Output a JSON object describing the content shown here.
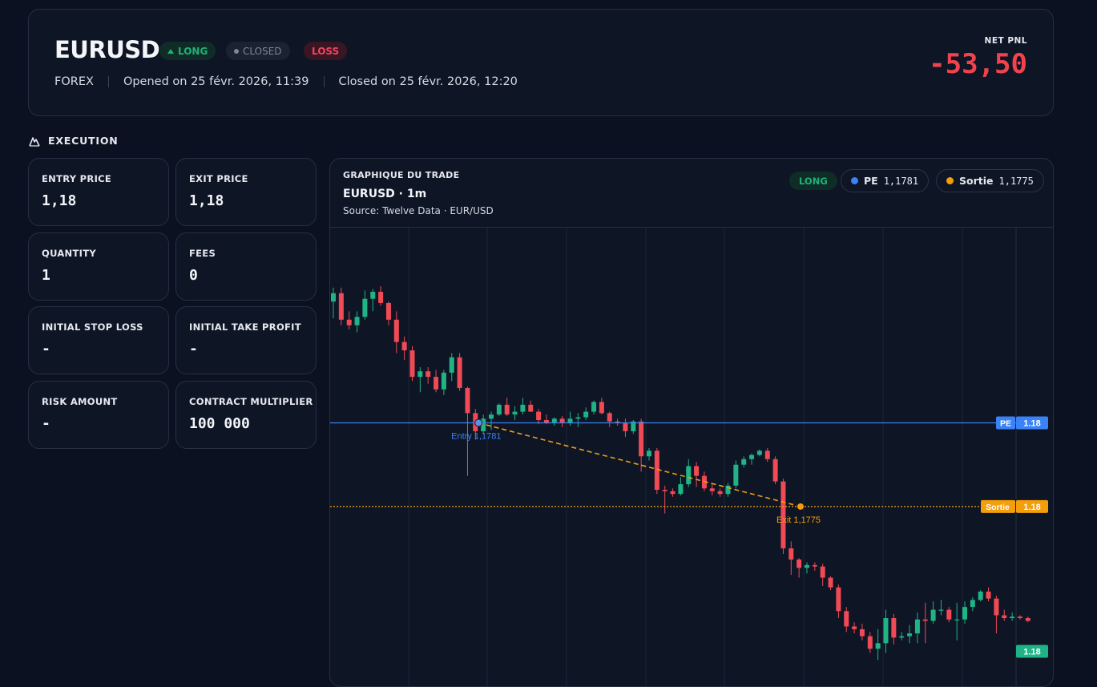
{
  "header": {
    "symbol": "EURUSD",
    "direction_badge": "LONG",
    "status_badge": "CLOSED",
    "result_badge": "LOSS",
    "market": "FOREX",
    "opened": "Opened on 25 févr. 2026, 11:39",
    "closed": "Closed on 25 févr. 2026, 12:20",
    "net_pnl_label": "NET PNL",
    "net_pnl_value": "-53,50"
  },
  "execution": {
    "title": "EXECUTION",
    "stats": [
      {
        "label": "ENTRY PRICE",
        "value": "1,18"
      },
      {
        "label": "EXIT PRICE",
        "value": "1,18"
      },
      {
        "label": "QUANTITY",
        "value": "1"
      },
      {
        "label": "FEES",
        "value": "0"
      },
      {
        "label": "INITIAL STOP LOSS",
        "value": "-"
      },
      {
        "label": "INITIAL TAKE PROFIT",
        "value": "-"
      },
      {
        "label": "RISK AMOUNT",
        "value": "-"
      },
      {
        "label": "CONTRACT MULTIPLIER",
        "value": "100 000"
      }
    ]
  },
  "chart": {
    "kicker": "GRAPHIQUE DU TRADE",
    "title": "EURUSD · 1m",
    "source": "Source: Twelve Data · EUR/USD",
    "long_pill": "LONG",
    "pe_label": "PE",
    "pe_value": "1,1781",
    "exit_label": "Sortie",
    "exit_value": "1,1775",
    "entry_marker_text": "Entry 1,1781",
    "exit_marker_text": "Exit 1,1775",
    "pe_axis_tag": "PE",
    "pe_axis_value": "1.18",
    "exit_axis_tag": "Sortie",
    "exit_axis_value": "1.18",
    "last_axis_value": "1.18",
    "colors": {
      "up": "#1fb386",
      "down": "#ef4a55",
      "pe": "#3b82f6",
      "exit": "#f59e0b"
    }
  },
  "chart_data": {
    "type": "candlestick",
    "title": "EURUSD · 1m",
    "entry_price": 1.1781,
    "exit_price": 1.1775,
    "candles": [
      {
        "o": 1.17897,
        "h": 1.17907,
        "l": 1.17885,
        "c": 1.17903
      },
      {
        "o": 1.17903,
        "h": 1.17907,
        "l": 1.1788,
        "c": 1.17884
      },
      {
        "o": 1.17884,
        "h": 1.1789,
        "l": 1.17877,
        "c": 1.1788
      },
      {
        "o": 1.1788,
        "h": 1.1789,
        "l": 1.17875,
        "c": 1.17886
      },
      {
        "o": 1.17886,
        "h": 1.17905,
        "l": 1.17884,
        "c": 1.17899
      },
      {
        "o": 1.17899,
        "h": 1.17906,
        "l": 1.1789,
        "c": 1.17904
      },
      {
        "o": 1.17904,
        "h": 1.17908,
        "l": 1.17894,
        "c": 1.17896
      },
      {
        "o": 1.17896,
        "h": 1.17897,
        "l": 1.1788,
        "c": 1.17884
      },
      {
        "o": 1.17884,
        "h": 1.1789,
        "l": 1.1786,
        "c": 1.17868
      },
      {
        "o": 1.17868,
        "h": 1.17872,
        "l": 1.17855,
        "c": 1.17862
      },
      {
        "o": 1.17862,
        "h": 1.17865,
        "l": 1.1784,
        "c": 1.17843
      },
      {
        "o": 1.17843,
        "h": 1.1785,
        "l": 1.17832,
        "c": 1.17847
      },
      {
        "o": 1.17847,
        "h": 1.1785,
        "l": 1.17838,
        "c": 1.17843
      },
      {
        "o": 1.17843,
        "h": 1.17848,
        "l": 1.17832,
        "c": 1.17834
      },
      {
        "o": 1.17834,
        "h": 1.17848,
        "l": 1.1783,
        "c": 1.17846
      },
      {
        "o": 1.17846,
        "h": 1.1786,
        "l": 1.1784,
        "c": 1.17857
      },
      {
        "o": 1.17857,
        "h": 1.1786,
        "l": 1.17833,
        "c": 1.17835
      },
      {
        "o": 1.17835,
        "h": 1.17836,
        "l": 1.17772,
        "c": 1.17817
      },
      {
        "o": 1.17817,
        "h": 1.1782,
        "l": 1.17798,
        "c": 1.17804
      },
      {
        "o": 1.17804,
        "h": 1.17816,
        "l": 1.17802,
        "c": 1.17813
      },
      {
        "o": 1.17813,
        "h": 1.17818,
        "l": 1.17805,
        "c": 1.17816
      },
      {
        "o": 1.17816,
        "h": 1.17824,
        "l": 1.17815,
        "c": 1.17823
      },
      {
        "o": 1.17823,
        "h": 1.17828,
        "l": 1.17815,
        "c": 1.17816
      },
      {
        "o": 1.17816,
        "h": 1.17822,
        "l": 1.17812,
        "c": 1.17818
      },
      {
        "o": 1.17818,
        "h": 1.17828,
        "l": 1.17816,
        "c": 1.17823
      },
      {
        "o": 1.17823,
        "h": 1.17826,
        "l": 1.17818,
        "c": 1.17818
      },
      {
        "o": 1.17818,
        "h": 1.1782,
        "l": 1.17809,
        "c": 1.17812
      },
      {
        "o": 1.17812,
        "h": 1.17816,
        "l": 1.17809,
        "c": 1.1781
      },
      {
        "o": 1.1781,
        "h": 1.17814,
        "l": 1.17808,
        "c": 1.17813
      },
      {
        "o": 1.17813,
        "h": 1.17815,
        "l": 1.17807,
        "c": 1.1781
      },
      {
        "o": 1.1781,
        "h": 1.17818,
        "l": 1.17808,
        "c": 1.17813
      },
      {
        "o": 1.17813,
        "h": 1.17817,
        "l": 1.17807,
        "c": 1.17814
      },
      {
        "o": 1.17814,
        "h": 1.17821,
        "l": 1.17812,
        "c": 1.17818
      },
      {
        "o": 1.17818,
        "h": 1.17826,
        "l": 1.17816,
        "c": 1.17825
      },
      {
        "o": 1.17825,
        "h": 1.17828,
        "l": 1.17816,
        "c": 1.17817
      },
      {
        "o": 1.17817,
        "h": 1.17818,
        "l": 1.17807,
        "c": 1.17811
      },
      {
        "o": 1.17811,
        "h": 1.17813,
        "l": 1.17808,
        "c": 1.1781
      },
      {
        "o": 1.1781,
        "h": 1.17813,
        "l": 1.178,
        "c": 1.17804
      },
      {
        "o": 1.17804,
        "h": 1.17812,
        "l": 1.17802,
        "c": 1.17811
      },
      {
        "o": 1.17811,
        "h": 1.17813,
        "l": 1.17775,
        "c": 1.17786
      },
      {
        "o": 1.17786,
        "h": 1.17792,
        "l": 1.17783,
        "c": 1.1779
      },
      {
        "o": 1.1779,
        "h": 1.17792,
        "l": 1.17759,
        "c": 1.17762
      },
      {
        "o": 1.17762,
        "h": 1.17765,
        "l": 1.17745,
        "c": 1.17761
      },
      {
        "o": 1.17761,
        "h": 1.17763,
        "l": 1.17757,
        "c": 1.17759
      },
      {
        "o": 1.17759,
        "h": 1.17771,
        "l": 1.17758,
        "c": 1.17766
      },
      {
        "o": 1.17766,
        "h": 1.17784,
        "l": 1.17764,
        "c": 1.17779
      },
      {
        "o": 1.17779,
        "h": 1.17782,
        "l": 1.17764,
        "c": 1.17772
      },
      {
        "o": 1.17772,
        "h": 1.17775,
        "l": 1.17761,
        "c": 1.17763
      },
      {
        "o": 1.17763,
        "h": 1.17766,
        "l": 1.17758,
        "c": 1.17761
      },
      {
        "o": 1.17761,
        "h": 1.17763,
        "l": 1.17757,
        "c": 1.17759
      },
      {
        "o": 1.17759,
        "h": 1.17767,
        "l": 1.17757,
        "c": 1.17765
      },
      {
        "o": 1.17765,
        "h": 1.17783,
        "l": 1.17763,
        "c": 1.1778
      },
      {
        "o": 1.1778,
        "h": 1.17786,
        "l": 1.17778,
        "c": 1.17784
      },
      {
        "o": 1.17784,
        "h": 1.17788,
        "l": 1.1778,
        "c": 1.17787
      },
      {
        "o": 1.17787,
        "h": 1.17791,
        "l": 1.17786,
        "c": 1.1779
      },
      {
        "o": 1.1779,
        "h": 1.17792,
        "l": 1.17782,
        "c": 1.17784
      },
      {
        "o": 1.17784,
        "h": 1.17786,
        "l": 1.17766,
        "c": 1.17768
      },
      {
        "o": 1.17768,
        "h": 1.1777,
        "l": 1.17716,
        "c": 1.1772
      },
      {
        "o": 1.1772,
        "h": 1.17725,
        "l": 1.17701,
        "c": 1.17712
      },
      {
        "o": 1.17712,
        "h": 1.17713,
        "l": 1.17699,
        "c": 1.17706
      },
      {
        "o": 1.17706,
        "h": 1.1771,
        "l": 1.17702,
        "c": 1.17708
      },
      {
        "o": 1.17708,
        "h": 1.1771,
        "l": 1.17704,
        "c": 1.17707
      },
      {
        "o": 1.17707,
        "h": 1.17709,
        "l": 1.17693,
        "c": 1.17699
      },
      {
        "o": 1.17699,
        "h": 1.177,
        "l": 1.1769,
        "c": 1.17692
      },
      {
        "o": 1.17692,
        "h": 1.17694,
        "l": 1.1767,
        "c": 1.17675
      },
      {
        "o": 1.17675,
        "h": 1.17678,
        "l": 1.1766,
        "c": 1.17664
      },
      {
        "o": 1.17664,
        "h": 1.17667,
        "l": 1.17659,
        "c": 1.17662
      },
      {
        "o": 1.17662,
        "h": 1.17666,
        "l": 1.17654,
        "c": 1.17657
      },
      {
        "o": 1.17657,
        "h": 1.1766,
        "l": 1.17645,
        "c": 1.17648
      },
      {
        "o": 1.17648,
        "h": 1.17662,
        "l": 1.1764,
        "c": 1.17652
      },
      {
        "o": 1.17652,
        "h": 1.17676,
        "l": 1.17645,
        "c": 1.1767
      },
      {
        "o": 1.1767,
        "h": 1.17673,
        "l": 1.17651,
        "c": 1.17656
      },
      {
        "o": 1.17656,
        "h": 1.1766,
        "l": 1.17654,
        "c": 1.17657
      },
      {
        "o": 1.17657,
        "h": 1.17665,
        "l": 1.17652,
        "c": 1.17659
      },
      {
        "o": 1.17659,
        "h": 1.17674,
        "l": 1.17652,
        "c": 1.17669
      },
      {
        "o": 1.17669,
        "h": 1.17681,
        "l": 1.17652,
        "c": 1.17668
      },
      {
        "o": 1.17668,
        "h": 1.17682,
        "l": 1.17666,
        "c": 1.17676
      },
      {
        "o": 1.17676,
        "h": 1.17683,
        "l": 1.17672,
        "c": 1.17676
      },
      {
        "o": 1.17676,
        "h": 1.17678,
        "l": 1.17667,
        "c": 1.17669
      },
      {
        "o": 1.17669,
        "h": 1.17681,
        "l": 1.17654,
        "c": 1.17669
      },
      {
        "o": 1.17669,
        "h": 1.17682,
        "l": 1.17666,
        "c": 1.17678
      },
      {
        "o": 1.17678,
        "h": 1.17685,
        "l": 1.17675,
        "c": 1.17683
      },
      {
        "o": 1.17683,
        "h": 1.1769,
        "l": 1.17682,
        "c": 1.17689
      },
      {
        "o": 1.17689,
        "h": 1.17692,
        "l": 1.17682,
        "c": 1.17684
      },
      {
        "o": 1.17684,
        "h": 1.17686,
        "l": 1.17659,
        "c": 1.17672
      },
      {
        "o": 1.17672,
        "h": 1.17676,
        "l": 1.17668,
        "c": 1.1767
      },
      {
        "o": 1.1767,
        "h": 1.17674,
        "l": 1.17668,
        "c": 1.17671
      },
      {
        "o": 1.17671,
        "h": 1.17672,
        "l": 1.17669,
        "c": 1.1767
      },
      {
        "o": 1.1767,
        "h": 1.17671,
        "l": 1.17667,
        "c": 1.17668
      }
    ]
  }
}
